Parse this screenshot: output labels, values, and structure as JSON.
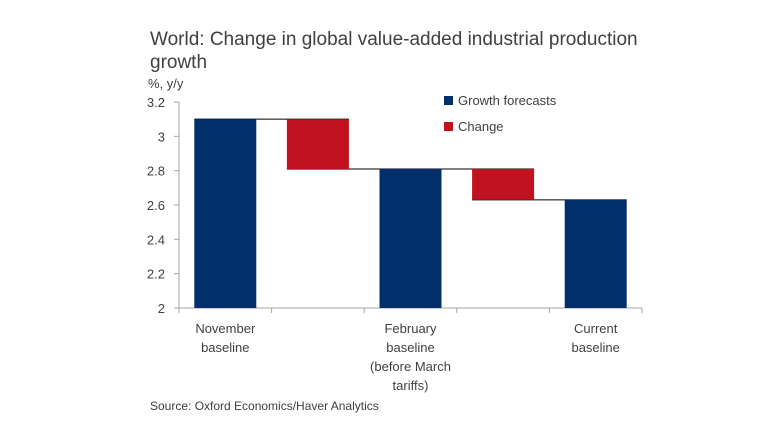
{
  "chart_data": {
    "type": "waterfall",
    "title": "World: Change in global value-added industrial production growth",
    "ylabel": "%, y/y",
    "ylim": [
      2,
      3.2
    ],
    "yticks": [
      2,
      2.2,
      2.4,
      2.6,
      2.8,
      3,
      3.2
    ],
    "categories": [
      [
        "November",
        "baseline"
      ],
      [],
      [
        "February",
        "baseline",
        "(before March",
        "tariffs)"
      ],
      [],
      [
        "Current",
        "baseline"
      ]
    ],
    "bars": [
      {
        "kind": "total",
        "low": 2,
        "high": 3.1
      },
      {
        "kind": "change",
        "low": 2.81,
        "high": 3.1
      },
      {
        "kind": "total",
        "low": 2,
        "high": 2.81
      },
      {
        "kind": "change",
        "low": 2.63,
        "high": 2.81
      },
      {
        "kind": "total",
        "low": 2,
        "high": 2.63
      }
    ],
    "legend": [
      {
        "label": "Growth forecasts",
        "color": "#002f6c"
      },
      {
        "label": "Change",
        "color": "#c0121f"
      }
    ],
    "source": "Source: Oxford Economics/Haver Analytics",
    "colors": {
      "total": "#002f6c",
      "change": "#c0121f",
      "axis": "#a6a6a6",
      "connector": "#000000"
    }
  }
}
